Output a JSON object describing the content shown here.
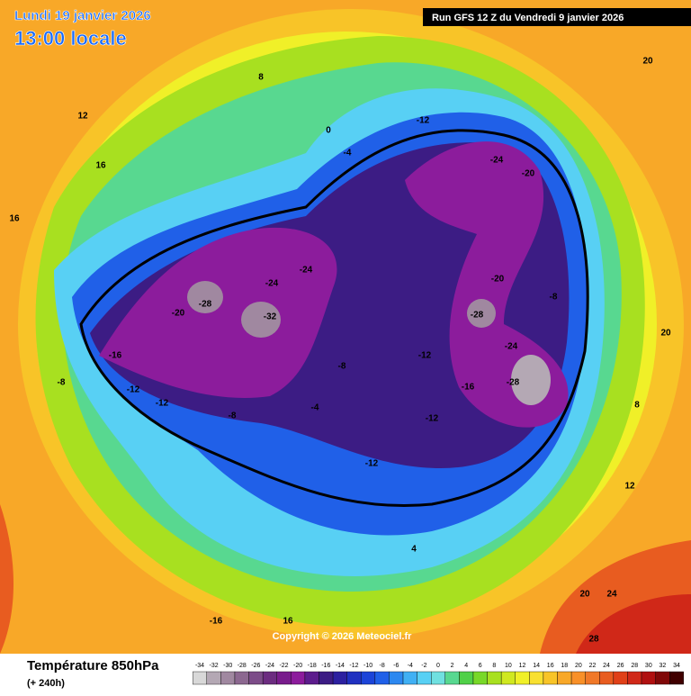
{
  "header": {
    "date": "Lundi 19 janvier 2026",
    "time": "13:00 locale",
    "run": "Run GFS 12 Z du Vendredi 9 janvier 2026"
  },
  "copyright": "Copyright © 2026 Meteociel.fr",
  "footer": {
    "title": "Température 850hPa",
    "lead": "(+ 240h)"
  },
  "colorbar": {
    "ticks": [
      -34,
      -32,
      -30,
      -28,
      -26,
      -24,
      -22,
      -20,
      -18,
      -16,
      -14,
      -12,
      -10,
      -8,
      -6,
      -4,
      -2,
      0,
      2,
      4,
      6,
      8,
      10,
      12,
      14,
      16,
      18,
      20,
      22,
      24,
      26,
      28,
      30,
      32,
      34
    ],
    "colors": [
      "#d8d8d8",
      "#b4a8b4",
      "#a088a0",
      "#8c6890",
      "#7c4c88",
      "#6c2c80",
      "#781c8c",
      "#8c1c9c",
      "#5c1c8c",
      "#3c1c84",
      "#2c20a0",
      "#2030c0",
      "#1c44d8",
      "#2060e8",
      "#2c88f0",
      "#40b0f4",
      "#58d0f4",
      "#70e0e0",
      "#58d890",
      "#50d048",
      "#78d828",
      "#a8e020",
      "#d0e820",
      "#f0f028",
      "#f8e030",
      "#f8c428",
      "#f8a828",
      "#f89028",
      "#f07828",
      "#e85c20",
      "#e04018",
      "#d02818",
      "#b01010",
      "#800808",
      "#400000"
    ]
  },
  "map_labels": [
    -28,
    -32,
    -24,
    -24,
    -20,
    -16,
    -8,
    -12,
    -12,
    -8,
    -4,
    -8,
    -12,
    -12,
    -12,
    -28,
    -28,
    -24,
    -16,
    -20,
    -8,
    -24,
    -20,
    -12,
    -4,
    0,
    8,
    12,
    16,
    16,
    16,
    -16,
    20,
    24,
    28,
    20,
    20,
    8,
    12,
    4
  ]
}
